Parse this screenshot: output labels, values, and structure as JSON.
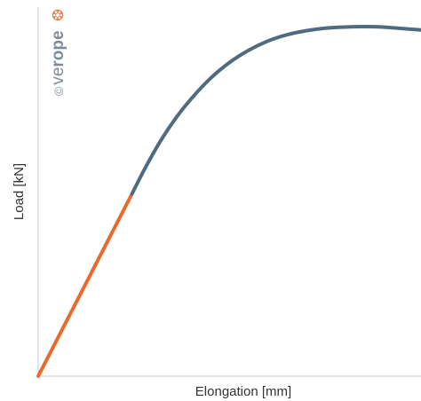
{
  "watermark": {
    "copyright": "©",
    "brand_light": "ve",
    "brand_bold": "rope",
    "brand_color": "#7d8c99",
    "mark_color": "#ea7a46",
    "mark_icon": "rope-cross-section-icon"
  },
  "chart_data": {
    "type": "line",
    "title": "",
    "xlabel": "Elongation [mm]",
    "ylabel": "Load [kN]",
    "xlim": [
      0,
      100
    ],
    "ylim": [
      0,
      100
    ],
    "grid": false,
    "ticks_shown": false,
    "series": [
      {
        "color": "#ea6a2e",
        "x": [
          0,
          24.5
        ],
        "y": [
          0,
          49.4
        ]
      },
      {
        "color": "#4f6b80",
        "x": [
          24.5,
          28,
          32,
          36,
          40,
          45,
          50,
          55,
          60,
          65,
          70,
          75,
          80,
          85,
          90,
          95,
          100
        ],
        "y": [
          49.4,
          56.5,
          63.8,
          70.0,
          75.2,
          80.7,
          85.0,
          88.3,
          90.8,
          92.5,
          93.6,
          94.3,
          94.6,
          94.7,
          94.6,
          94.2,
          93.8
        ]
      }
    ]
  }
}
